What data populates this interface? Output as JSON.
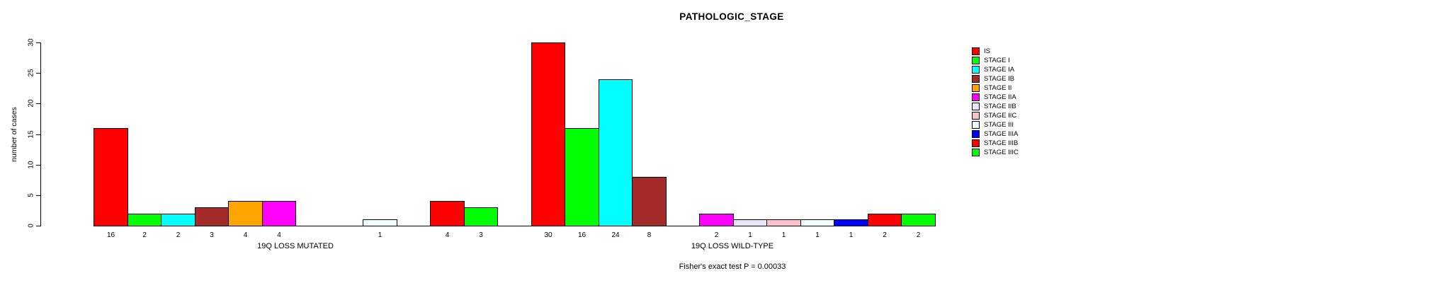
{
  "title": "PATHOLOGIC_STAGE",
  "footer": "Fisher's exact test P = 0.00033",
  "y_axis": {
    "label": "number of cases",
    "ticks": [
      0,
      5,
      10,
      15,
      20,
      25,
      30
    ]
  },
  "chart_data": {
    "type": "bar",
    "title": "PATHOLOGIC_STAGE",
    "xlabel": "",
    "ylabel": "number of cases",
    "ylim": [
      0,
      30
    ],
    "grid": false,
    "legend_position": "right",
    "categories": [
      "IS",
      "STAGE I",
      "STAGE IA",
      "STAGE IB",
      "STAGE II",
      "STAGE IIA",
      "STAGE IIB",
      "STAGE IIC",
      "STAGE III",
      "STAGE IIIA",
      "STAGE IIIB",
      "STAGE IIIC"
    ],
    "colors": [
      "#FF0000",
      "#00FF00",
      "#00FFFF",
      "#A52A2A",
      "#FFA500",
      "#FF00FF",
      "#E6E6FA",
      "#FFC0CB",
      "#F0FFFF",
      "#0000FF",
      "#FF0000",
      "#00FF00"
    ],
    "series": [
      {
        "name": "19Q LOSS MUTATED",
        "values": [
          16,
          2,
          2,
          3,
          4,
          4,
          0,
          0,
          1,
          0,
          4,
          3
        ]
      },
      {
        "name": "19Q LOSS WILD-TYPE",
        "values": [
          30,
          16,
          24,
          8,
          0,
          2,
          1,
          1,
          1,
          1,
          2,
          2
        ]
      }
    ],
    "annotation": "Fisher's exact test P = 0.00033"
  }
}
